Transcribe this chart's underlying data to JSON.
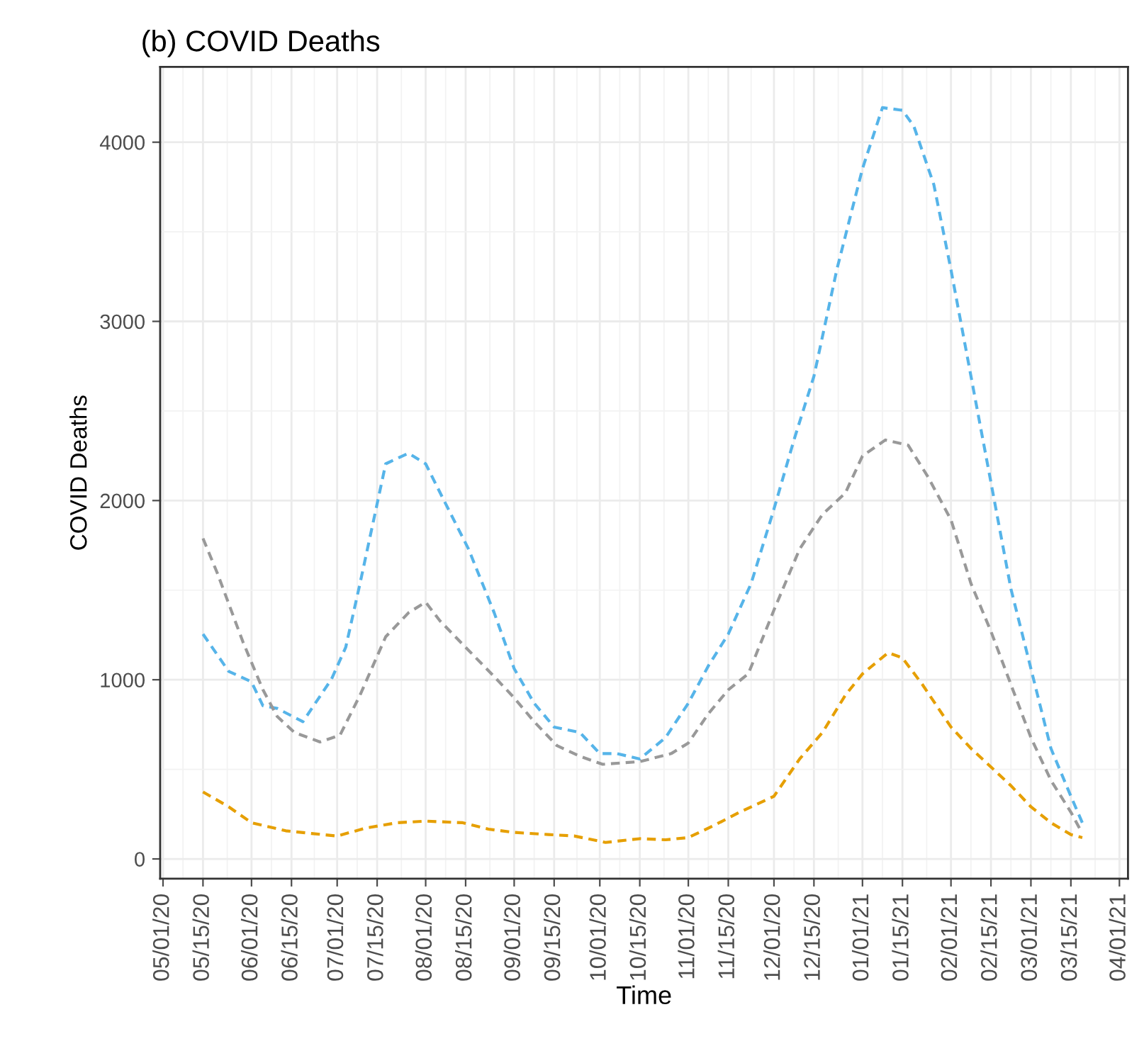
{
  "chart_data": {
    "type": "line",
    "title": "(b) COVID Deaths",
    "xlabel": "Time",
    "ylabel": "COVID Deaths",
    "line_style": "dashed",
    "marker": "none",
    "grid": true,
    "xlim": [
      "2020-04-30",
      "2021-04-04"
    ],
    "ylim": [
      -110,
      4420
    ],
    "yticks": [
      0,
      1000,
      2000,
      3000,
      4000
    ],
    "xticks": [
      {
        "value": "2020-05-01",
        "label": "05/01/20"
      },
      {
        "value": "2020-05-15",
        "label": "05/15/20"
      },
      {
        "value": "2020-06-01",
        "label": "06/01/20"
      },
      {
        "value": "2020-06-15",
        "label": "06/15/20"
      },
      {
        "value": "2020-07-01",
        "label": "07/01/20"
      },
      {
        "value": "2020-07-15",
        "label": "07/15/20"
      },
      {
        "value": "2020-08-01",
        "label": "08/01/20"
      },
      {
        "value": "2020-08-15",
        "label": "08/15/20"
      },
      {
        "value": "2020-09-01",
        "label": "09/01/20"
      },
      {
        "value": "2020-09-15",
        "label": "09/15/20"
      },
      {
        "value": "2020-10-01",
        "label": "10/01/20"
      },
      {
        "value": "2020-10-15",
        "label": "10/15/20"
      },
      {
        "value": "2020-11-01",
        "label": "11/01/20"
      },
      {
        "value": "2020-11-15",
        "label": "11/15/20"
      },
      {
        "value": "2020-12-01",
        "label": "12/01/20"
      },
      {
        "value": "2020-12-15",
        "label": "12/15/20"
      },
      {
        "value": "2021-01-01",
        "label": "01/01/21"
      },
      {
        "value": "2021-01-15",
        "label": "01/15/21"
      },
      {
        "value": "2021-02-01",
        "label": "02/01/21"
      },
      {
        "value": "2021-02-15",
        "label": "02/15/21"
      },
      {
        "value": "2021-03-01",
        "label": "03/01/21"
      },
      {
        "value": "2021-03-15",
        "label": "03/15/21"
      },
      {
        "value": "2021-04-01",
        "label": "04/01/21"
      }
    ],
    "series": [
      {
        "color": "#56b4e9",
        "x": [
          "2020-05-15",
          "2020-05-24",
          "2020-06-01",
          "2020-06-05",
          "2020-06-10",
          "2020-06-19",
          "2020-06-29",
          "2020-07-04",
          "2020-07-09",
          "2020-07-18",
          "2020-07-26",
          "2020-08-01",
          "2020-08-08",
          "2020-08-16",
          "2020-08-25",
          "2020-09-01",
          "2020-09-08",
          "2020-09-15",
          "2020-09-24",
          "2020-10-01",
          "2020-10-07",
          "2020-10-15",
          "2020-10-24",
          "2020-11-01",
          "2020-11-08",
          "2020-11-15",
          "2020-11-23",
          "2020-12-01",
          "2020-12-08",
          "2020-12-15",
          "2020-12-23",
          "2021-01-01",
          "2021-01-08",
          "2021-01-15",
          "2021-01-19",
          "2021-01-26",
          "2021-02-01",
          "2021-02-08",
          "2021-02-15",
          "2021-02-22",
          "2021-03-01",
          "2021-03-08",
          "2021-03-15",
          "2021-03-19"
        ],
        "values": [
          1255,
          1047,
          988,
          855,
          840,
          766,
          1003,
          1181,
          1537,
          2205,
          2264,
          2205,
          1982,
          1730,
          1374,
          1062,
          869,
          736,
          706,
          588,
          588,
          558,
          677,
          869,
          1077,
          1255,
          1537,
          1953,
          2338,
          2694,
          3288,
          3852,
          4193,
          4178,
          4089,
          3763,
          3288,
          2694,
          2101,
          1507,
          1062,
          617,
          350,
          202
        ]
      },
      {
        "color": "#999999",
        "x": [
          "2020-05-15",
          "2020-05-20",
          "2020-05-29",
          "2020-06-05",
          "2020-06-10",
          "2020-06-16",
          "2020-06-25",
          "2020-07-02",
          "2020-07-09",
          "2020-07-18",
          "2020-07-26",
          "2020-08-01",
          "2020-08-06",
          "2020-08-15",
          "2020-08-25",
          "2020-09-01",
          "2020-09-08",
          "2020-09-16",
          "2020-09-24",
          "2020-10-02",
          "2020-10-15",
          "2020-10-26",
          "2020-11-01",
          "2020-11-08",
          "2020-11-15",
          "2020-11-22",
          "2020-12-01",
          "2020-12-10",
          "2020-12-18",
          "2020-12-26",
          "2021-01-01",
          "2021-01-09",
          "2021-01-17",
          "2021-01-24",
          "2021-02-01",
          "2021-02-08",
          "2021-02-15",
          "2021-02-22",
          "2021-03-01",
          "2021-03-08",
          "2021-03-15",
          "2021-03-18"
        ],
        "values": [
          1789,
          1596,
          1211,
          944,
          795,
          706,
          653,
          691,
          914,
          1240,
          1374,
          1433,
          1329,
          1181,
          1018,
          899,
          766,
          632,
          573,
          528,
          543,
          588,
          647,
          810,
          944,
          1033,
          1389,
          1730,
          1923,
          2042,
          2249,
          2338,
          2309,
          2131,
          1893,
          1537,
          1270,
          973,
          677,
          439,
          261,
          172
        ]
      },
      {
        "color": "#e69f00",
        "x": [
          "2020-05-15",
          "2020-05-24",
          "2020-06-01",
          "2020-06-13",
          "2020-06-22",
          "2020-07-01",
          "2020-07-11",
          "2020-07-22",
          "2020-08-01",
          "2020-08-14",
          "2020-08-23",
          "2020-09-01",
          "2020-09-13",
          "2020-09-22",
          "2020-10-03",
          "2020-10-15",
          "2020-10-24",
          "2020-11-01",
          "2020-11-10",
          "2020-11-19",
          "2020-12-01",
          "2020-12-10",
          "2020-12-18",
          "2020-12-26",
          "2021-01-01",
          "2021-01-10",
          "2021-01-15",
          "2021-01-22",
          "2021-02-01",
          "2021-02-08",
          "2021-02-15",
          "2021-02-22",
          "2021-03-01",
          "2021-03-08",
          "2021-03-15",
          "2021-03-19"
        ],
        "values": [
          374,
          291,
          202,
          157,
          142,
          128,
          172,
          202,
          211,
          202,
          166,
          148,
          136,
          128,
          92,
          113,
          107,
          119,
          187,
          261,
          350,
          558,
          706,
          914,
          1033,
          1151,
          1122,
          973,
          736,
          617,
          513,
          409,
          291,
          202,
          136,
          119
        ]
      }
    ]
  }
}
